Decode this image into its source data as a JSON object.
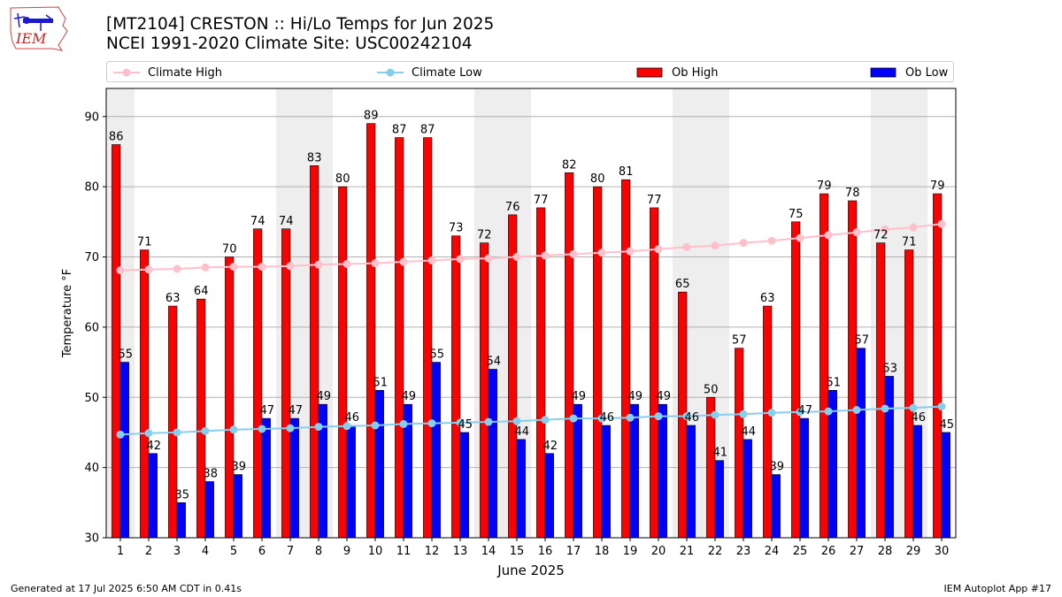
{
  "header": {
    "title": "[MT2104] CRESTON :: Hi/Lo Temps for Jun 2025",
    "subtitle": "NCEI 1991-2020 Climate Site: USC00242104"
  },
  "logo": {
    "text": "IEM"
  },
  "legend": {
    "climate_high": "Climate High",
    "climate_low": "Climate Low",
    "ob_high": "Ob High",
    "ob_low": "Ob Low"
  },
  "footer": {
    "generated": "Generated at 17 Jul 2025 6:50 AM CDT in 0.41s",
    "app": "IEM Autoplot App #17"
  },
  "colors": {
    "ob_high": "#ff0000",
    "ob_low": "#0000ff",
    "climate_high": "#ffc0cb",
    "climate_low": "#87ceeb",
    "weekend_shade": "#eeeeee",
    "grid": "#b0b0b0"
  },
  "chart_data": {
    "type": "bar",
    "xlabel": "June 2025",
    "ylabel": "Temperature °F",
    "ylim": [
      30,
      94
    ],
    "yticks": [
      30,
      40,
      50,
      60,
      70,
      80,
      90
    ],
    "grid": "horizontal",
    "legend_position": "top",
    "categories": [
      "1",
      "2",
      "3",
      "4",
      "5",
      "6",
      "7",
      "8",
      "9",
      "10",
      "11",
      "12",
      "13",
      "14",
      "15",
      "16",
      "17",
      "18",
      "19",
      "20",
      "21",
      "22",
      "23",
      "24",
      "25",
      "26",
      "27",
      "28",
      "29",
      "30"
    ],
    "shaded_days": [
      1,
      7,
      8,
      14,
      15,
      21,
      22,
      28,
      29
    ],
    "series": [
      {
        "name": "Ob High",
        "type": "bar",
        "values": [
          86,
          71,
          63,
          64,
          70,
          74,
          74,
          83,
          80,
          89,
          87,
          87,
          73,
          72,
          76,
          77,
          82,
          80,
          81,
          77,
          65,
          50,
          57,
          63,
          75,
          79,
          78,
          72,
          71,
          79
        ]
      },
      {
        "name": "Ob Low",
        "type": "bar",
        "values": [
          55,
          42,
          35,
          38,
          39,
          47,
          47,
          49,
          46,
          51,
          49,
          55,
          45,
          54,
          44,
          42,
          49,
          46,
          49,
          49,
          46,
          41,
          44,
          39,
          47,
          51,
          57,
          53,
          46,
          45
        ]
      },
      {
        "name": "Climate High",
        "type": "line",
        "values": [
          68.1,
          68.2,
          68.3,
          68.5,
          68.6,
          68.6,
          68.7,
          68.9,
          69.0,
          69.1,
          69.3,
          69.5,
          69.7,
          69.8,
          70.0,
          70.2,
          70.4,
          70.6,
          70.8,
          71.1,
          71.4,
          71.6,
          72.0,
          72.3,
          72.7,
          73.1,
          73.5,
          73.9,
          74.2,
          74.7
        ]
      },
      {
        "name": "Climate Low",
        "type": "line",
        "values": [
          44.7,
          44.9,
          45.0,
          45.2,
          45.4,
          45.5,
          45.6,
          45.8,
          45.9,
          46.0,
          46.2,
          46.3,
          46.4,
          46.5,
          46.6,
          46.8,
          47.0,
          47.0,
          47.1,
          47.3,
          47.3,
          47.5,
          47.6,
          47.8,
          47.9,
          48.0,
          48.2,
          48.4,
          48.5,
          48.7
        ]
      }
    ]
  }
}
